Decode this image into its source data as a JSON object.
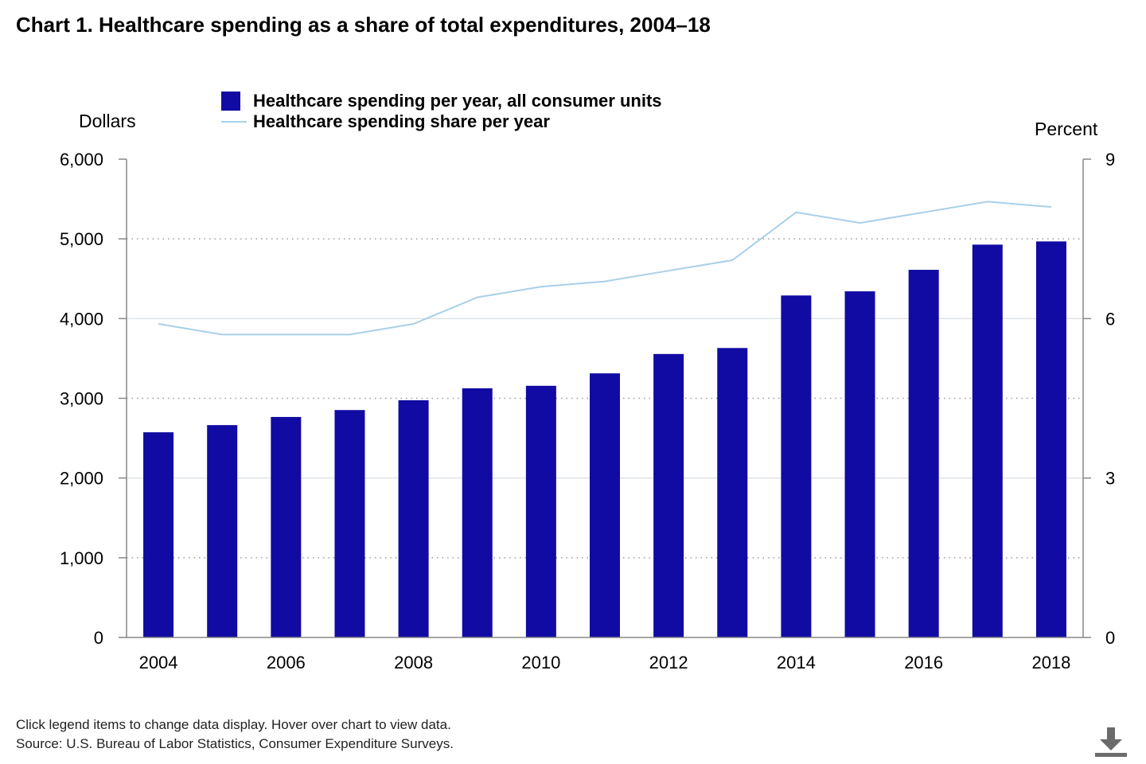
{
  "title": "Chart 1. Healthcare spending as a share of total expenditures, 2004–18",
  "legend": [
    {
      "label": "Healthcare spending per year, all consumer units",
      "kind": "bar"
    },
    {
      "label": "Healthcare spending share per year",
      "kind": "line"
    }
  ],
  "axes": {
    "left_title": "Dollars",
    "right_title": "Percent"
  },
  "footnotes": {
    "hint": "Click legend items to change data display. Hover over chart to view data.",
    "source": "Source: U.S. Bureau of Labor Statistics, Consumer Expenditure Surveys."
  },
  "icons": {
    "download": "download-icon"
  },
  "colors": {
    "bar": "#110ba3",
    "line": "#a9cfe9",
    "grid": "#999999",
    "axis": "#888888"
  },
  "chart_data": {
    "type": "bar",
    "title": "Chart 1. Healthcare spending as a share of total expenditures, 2004–18",
    "categories": [
      "2004",
      "2005",
      "2006",
      "2007",
      "2008",
      "2009",
      "2010",
      "2011",
      "2012",
      "2013",
      "2014",
      "2015",
      "2016",
      "2017",
      "2018"
    ],
    "x_tick_labels": [
      "2004",
      "2006",
      "2008",
      "2010",
      "2012",
      "2014",
      "2016",
      "2018"
    ],
    "series": [
      {
        "name": "Healthcare spending per year, all consumer units",
        "type": "bar",
        "axis": "left",
        "values": [
          2574,
          2664,
          2766,
          2853,
          2976,
          3126,
          3157,
          3313,
          3556,
          3631,
          4290,
          4342,
          4612,
          4928,
          4968
        ]
      },
      {
        "name": "Healthcare spending share per year",
        "type": "line",
        "axis": "right",
        "values": [
          5.9,
          5.7,
          5.7,
          5.7,
          5.9,
          6.4,
          6.6,
          6.7,
          6.9,
          7.1,
          8.0,
          7.8,
          8.0,
          8.2,
          8.1
        ]
      }
    ],
    "ylabel": "Dollars",
    "ylim": [
      0,
      6000
    ],
    "y_ticks": [
      "0",
      "1,000",
      "2,000",
      "3,000",
      "4,000",
      "5,000",
      "6,000"
    ],
    "y2label": "Percent",
    "y2lim": [
      0,
      9
    ],
    "y2_ticks": [
      "0",
      "3",
      "6",
      "9"
    ],
    "grid": true,
    "legend_position": "top"
  }
}
